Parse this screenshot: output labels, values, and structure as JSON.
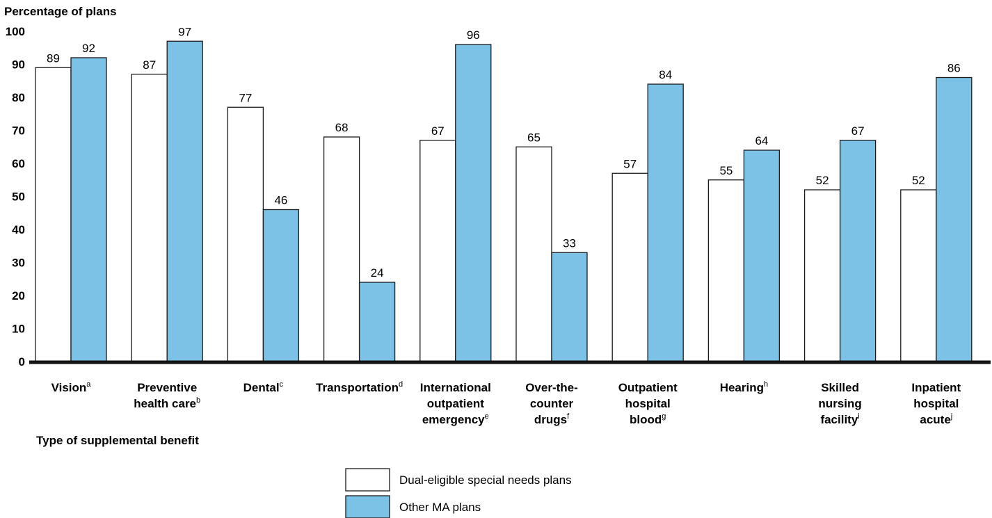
{
  "chart_data": {
    "type": "bar",
    "ylabel": "Percentage of plans",
    "xlabel": "Type of supplemental benefit",
    "ylim": [
      0,
      100
    ],
    "yticks": [
      0,
      10,
      20,
      30,
      40,
      50,
      60,
      70,
      80,
      90,
      100
    ],
    "grid": false,
    "legend_position": "bottom-center",
    "categories": [
      {
        "lines": [
          "Vision"
        ],
        "sup": "a"
      },
      {
        "lines": [
          "Preventive",
          "health care"
        ],
        "sup": "b"
      },
      {
        "lines": [
          "Dental"
        ],
        "sup": "c"
      },
      {
        "lines": [
          "Transportation"
        ],
        "sup": "d"
      },
      {
        "lines": [
          "International",
          "outpatient",
          "emergency"
        ],
        "sup": "e"
      },
      {
        "lines": [
          "Over-the-",
          "counter",
          "drugs"
        ],
        "sup": "f"
      },
      {
        "lines": [
          "Outpatient",
          "hospital",
          "blood"
        ],
        "sup": "g"
      },
      {
        "lines": [
          "Hearing"
        ],
        "sup": "h"
      },
      {
        "lines": [
          "Skilled",
          "nursing",
          "facility"
        ],
        "sup": "i"
      },
      {
        "lines": [
          "Inpatient",
          "hospital",
          "acute"
        ],
        "sup": "j"
      }
    ],
    "series": [
      {
        "name": "Dual-eligible special needs plans",
        "color": "#ffffff",
        "values": [
          89,
          87,
          77,
          68,
          67,
          65,
          57,
          55,
          52,
          52
        ]
      },
      {
        "name": "Other MA plans",
        "color": "#7cc1e6",
        "values": [
          92,
          97,
          46,
          24,
          96,
          33,
          84,
          64,
          67,
          86
        ]
      }
    ]
  }
}
